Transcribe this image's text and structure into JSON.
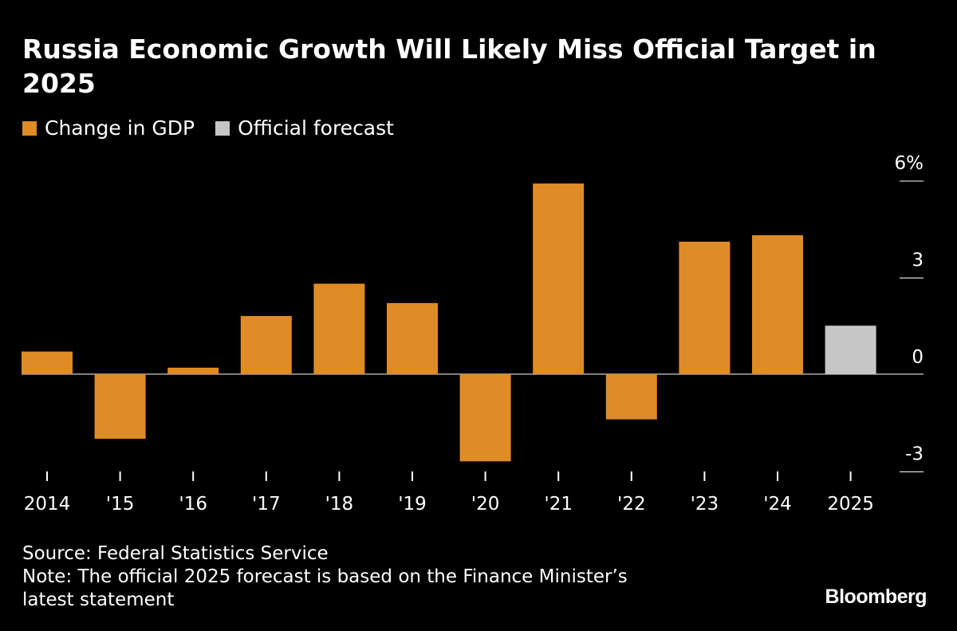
{
  "chart_data": {
    "type": "bar",
    "title": "Russia Economic Growth Will Likely Miss Official Target in 2025",
    "categories": [
      "2014",
      "'15",
      "'16",
      "'17",
      "'18",
      "'19",
      "'20",
      "'21",
      "'22",
      "'23",
      "'24",
      "2025"
    ],
    "series": [
      {
        "name": "Change in GDP",
        "color": "#df8b26",
        "values": [
          0.7,
          -2.0,
          0.2,
          1.8,
          2.8,
          2.2,
          -2.7,
          5.9,
          -1.4,
          4.1,
          4.3,
          null
        ]
      },
      {
        "name": "Official forecast",
        "color": "#c6c6c6",
        "values": [
          null,
          null,
          null,
          null,
          null,
          null,
          null,
          null,
          null,
          null,
          null,
          1.5
        ]
      }
    ],
    "ylim": [
      -3,
      6
    ],
    "yticks": [
      6,
      3,
      0,
      -3
    ],
    "ytick_labels": [
      "6%",
      "3",
      "0",
      "-3"
    ],
    "xlabel": "",
    "ylabel": "",
    "legend_position": "top-left"
  },
  "footer": {
    "source": "Source: Federal Statistics Service",
    "note": "Note: The official 2025 forecast is based on the Finance Minister’s latest statement"
  },
  "brand": "Bloomberg"
}
